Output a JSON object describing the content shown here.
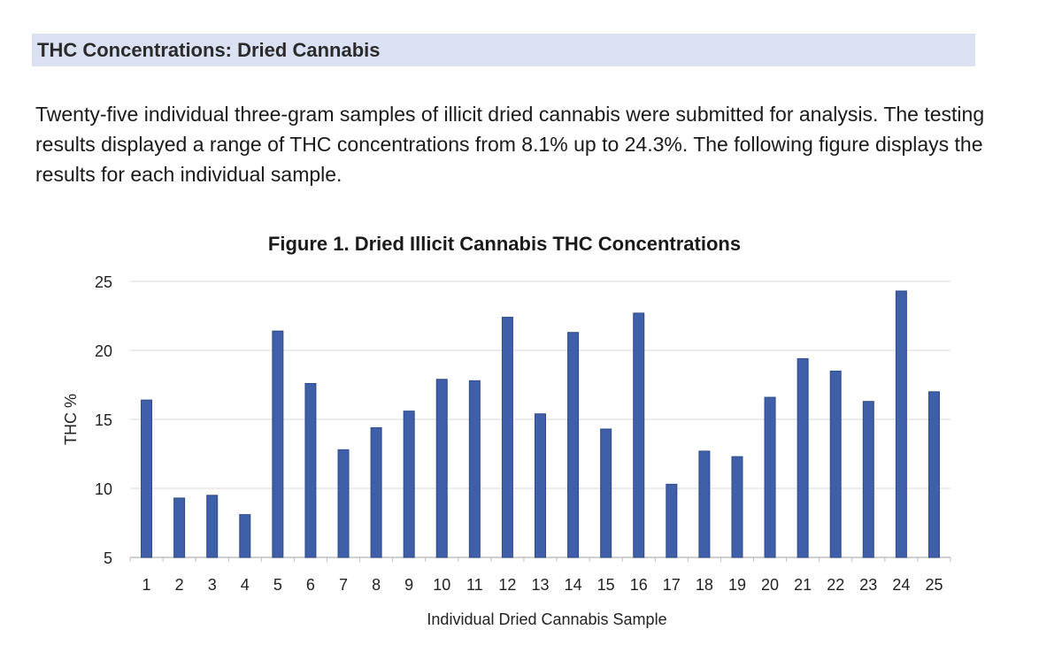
{
  "section": {
    "heading": "THC Concentrations: Dried Cannabis",
    "paragraph": "Twenty-five individual three-gram samples of illicit dried cannabis were submitted for analysis. The testing results displayed a range of THC concentrations from 8.1% up to 24.3%. The following figure displays the results for each individual sample."
  },
  "chart_data": {
    "type": "bar",
    "title": "Figure 1. Dried Illicit Cannabis THC Concentrations",
    "xlabel": "Individual Dried Cannabis Sample",
    "ylabel": "THC %",
    "categories": [
      "1",
      "2",
      "3",
      "4",
      "5",
      "6",
      "7",
      "8",
      "9",
      "10",
      "11",
      "12",
      "13",
      "14",
      "15",
      "16",
      "17",
      "18",
      "19",
      "20",
      "21",
      "22",
      "23",
      "24",
      "25"
    ],
    "values": [
      16.4,
      9.3,
      9.5,
      8.1,
      21.4,
      17.6,
      12.8,
      14.4,
      15.6,
      17.9,
      17.8,
      22.4,
      15.4,
      21.3,
      14.3,
      22.7,
      10.3,
      12.7,
      12.3,
      16.6,
      19.4,
      18.5,
      16.3,
      24.3,
      17.0
    ],
    "yticks": [
      5,
      10,
      15,
      20,
      25
    ],
    "ylim": [
      5,
      25
    ],
    "grid": true,
    "bar_color": "#3f5fa8",
    "grid_color": "#d9d9d9"
  }
}
